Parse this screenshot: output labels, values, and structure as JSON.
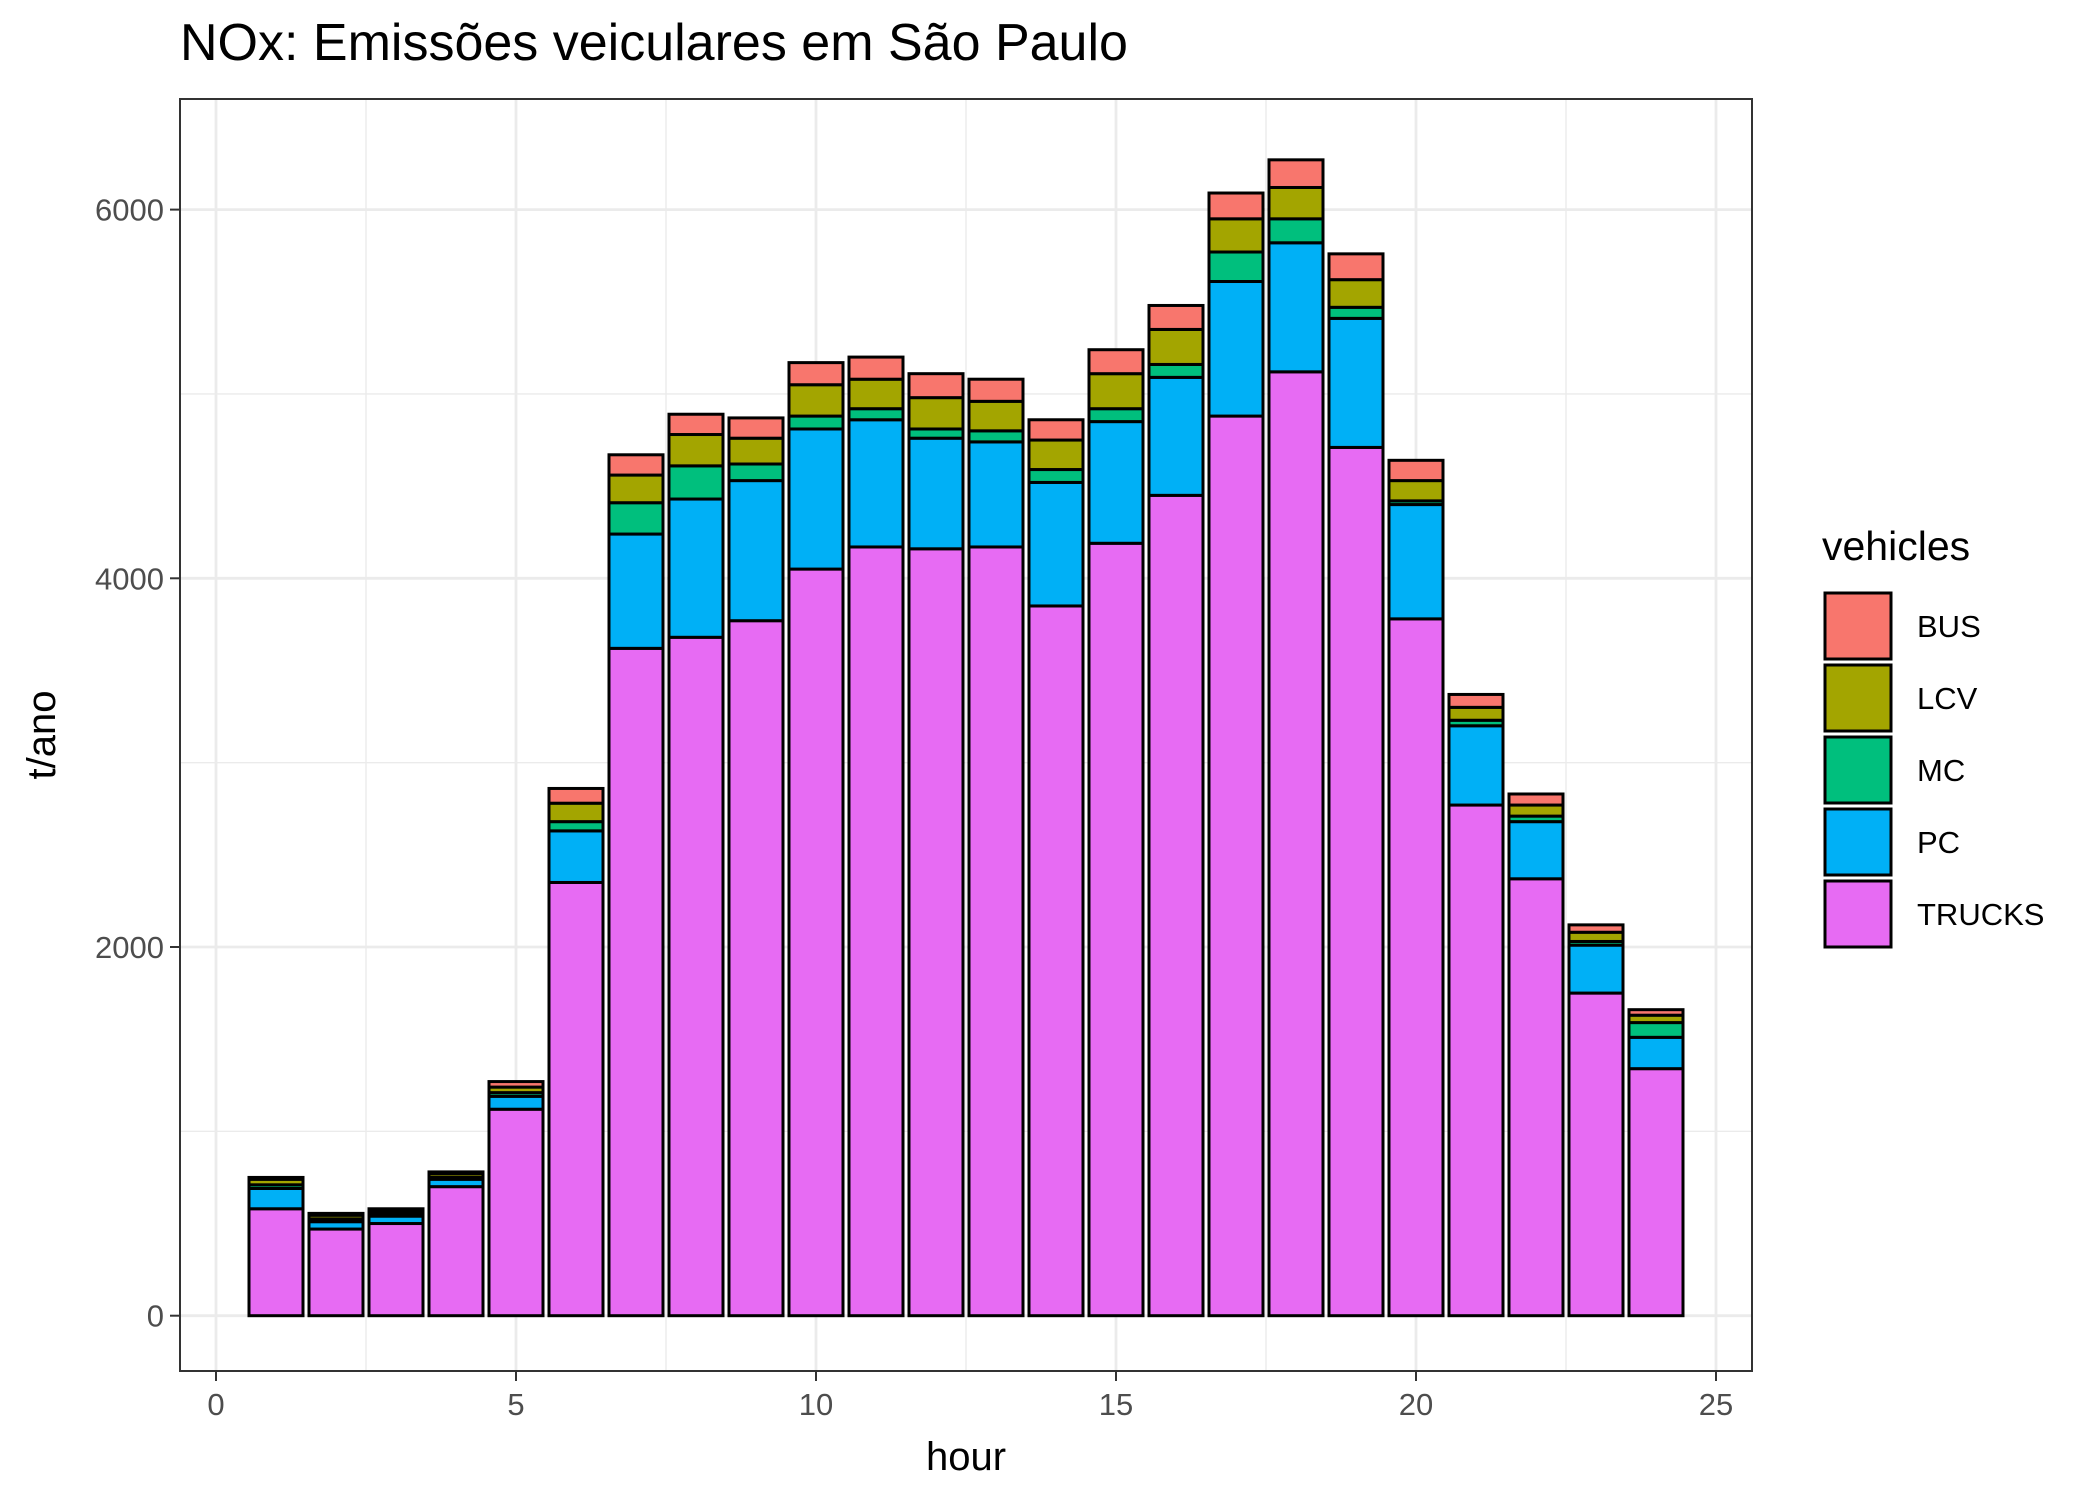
{
  "chart_data": {
    "type": "bar",
    "stacked": true,
    "title": "NOx: Emissões veiculares em São Paulo",
    "xlabel": "hour",
    "ylabel": "t/ano",
    "xlim": [
      -0.6,
      25.6
    ],
    "ylim": [
      -300,
      6600
    ],
    "x_ticks": [
      0,
      5,
      10,
      15,
      20,
      25
    ],
    "y_ticks": [
      0,
      2000,
      4000,
      6000
    ],
    "grid": true,
    "legend": {
      "title": "vehicles",
      "position": "right"
    },
    "x": [
      1,
      2,
      3,
      4,
      5,
      6,
      7,
      8,
      9,
      10,
      11,
      12,
      13,
      14,
      15,
      16,
      17,
      18,
      19,
      20,
      21,
      22,
      23,
      24
    ],
    "series": [
      {
        "name": "TRUCKS",
        "color": "#E76BF3",
        "values": [
          580,
          470,
          500,
          700,
          1120,
          2350,
          3620,
          3680,
          3770,
          4050,
          4170,
          4160,
          4170,
          3850,
          4190,
          4450,
          4880,
          5120,
          4710,
          3780,
          2770,
          2370,
          1750,
          1340
        ]
      },
      {
        "name": "PC",
        "color": "#00B0F6",
        "values": [
          110,
          40,
          40,
          40,
          70,
          280,
          620,
          750,
          760,
          760,
          690,
          600,
          570,
          670,
          660,
          640,
          730,
          700,
          700,
          620,
          430,
          310,
          260,
          170
        ]
      },
      {
        "name": "MC",
        "color": "#00BF7D",
        "values": [
          20,
          15,
          15,
          10,
          20,
          50,
          170,
          180,
          90,
          70,
          60,
          50,
          60,
          70,
          70,
          70,
          160,
          130,
          60,
          20,
          30,
          30,
          20,
          80
        ]
      },
      {
        "name": "LCV",
        "color": "#A3A500",
        "values": [
          30,
          20,
          15,
          20,
          30,
          100,
          150,
          170,
          140,
          170,
          160,
          170,
          160,
          160,
          190,
          190,
          180,
          170,
          150,
          110,
          70,
          60,
          50,
          40
        ]
      },
      {
        "name": "BUS",
        "color": "#F8766D",
        "values": [
          10,
          10,
          10,
          10,
          30,
          80,
          110,
          110,
          110,
          120,
          120,
          130,
          120,
          110,
          130,
          130,
          140,
          150,
          140,
          110,
          70,
          60,
          40,
          30
        ]
      }
    ]
  }
}
